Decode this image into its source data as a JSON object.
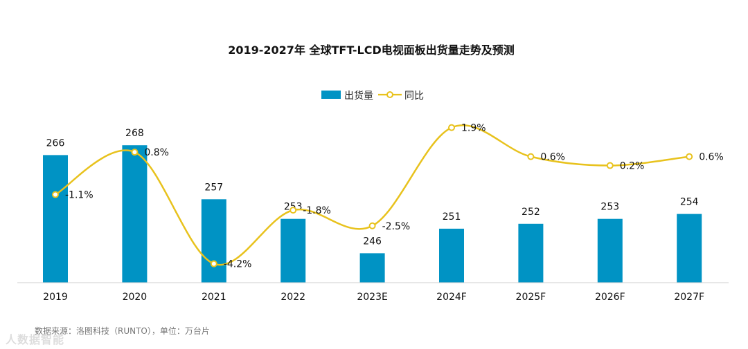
{
  "chart_data": {
    "type": "bar",
    "title": "2019-2027年 全球TFT-LCD电视面板出货量走势及预测",
    "categories": [
      "2019",
      "2020",
      "2021",
      "2022",
      "2023E",
      "2024F",
      "2025F",
      "2026F",
      "2027F"
    ],
    "series": [
      {
        "name": "出货量",
        "type": "bar",
        "color": "#0093c4",
        "values": [
          266,
          268,
          257,
          253,
          246,
          251,
          252,
          253,
          254
        ]
      },
      {
        "name": "同比",
        "type": "line",
        "color": "#e8c21d",
        "values": [
          -1.1,
          0.8,
          -4.2,
          -1.8,
          -2.5,
          1.9,
          0.6,
          0.2,
          0.6
        ],
        "labels": [
          "-1.1%",
          "0.8%",
          "-4.2%",
          "-1.8%",
          "-2.5%",
          "1.9%",
          "0.6%",
          "0.2%",
          "0.6%"
        ]
      }
    ],
    "legend": [
      "出货量",
      "同比"
    ],
    "legend_position": "top-center",
    "grid": false
  },
  "footer": "数据来源：洛图科技（RUNTO），单位：万台片",
  "watermark": "人数据智能"
}
